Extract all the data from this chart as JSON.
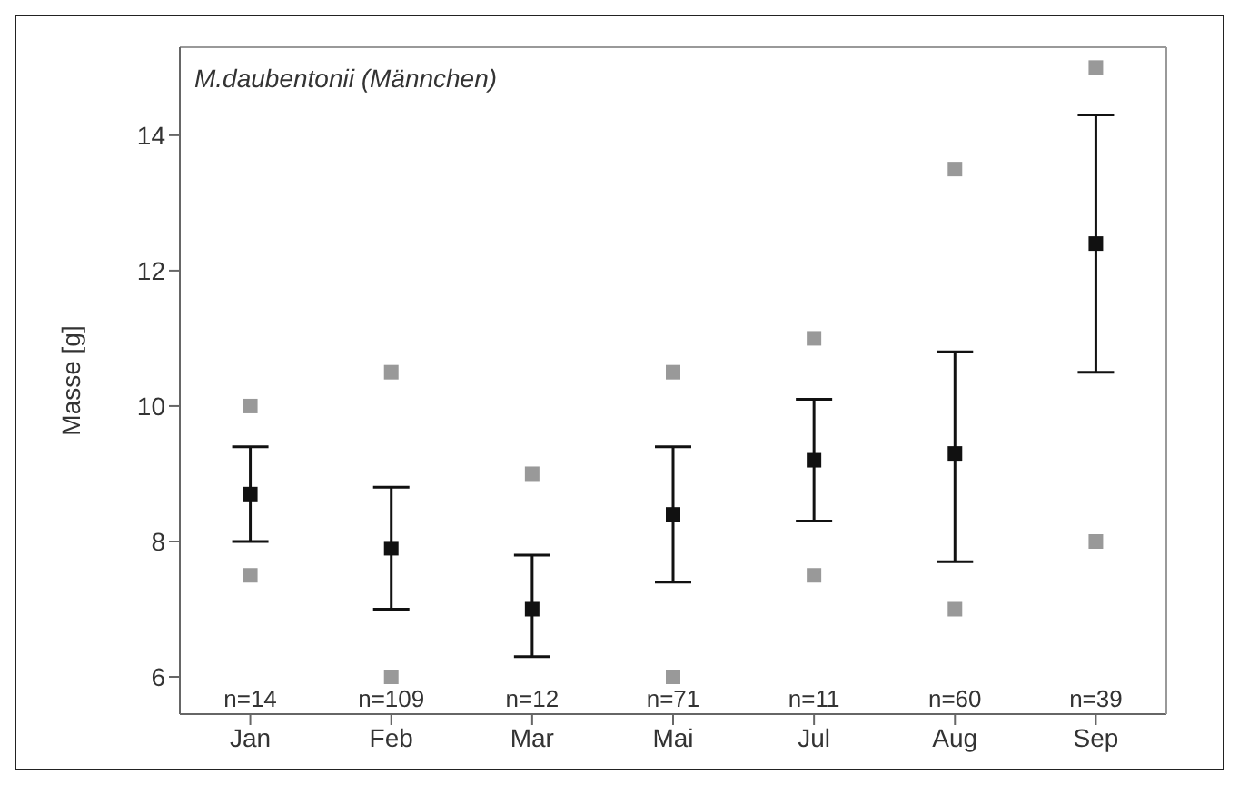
{
  "chart_data": {
    "type": "scatter",
    "title": "M.daubentonii (Männchen)",
    "ylabel": "Masse [g]",
    "categories": [
      "Jan",
      "Feb",
      "Mar",
      "Mai",
      "Jul",
      "Aug",
      "Sep"
    ],
    "series": [
      {
        "color": "#999999",
        "values": [
          10.0,
          10.5,
          9.0,
          10.5,
          11.0,
          13.5,
          15.0
        ]
      },
      {
        "color": "#999999",
        "values": [
          7.5,
          6.0,
          null,
          6.0,
          7.5,
          7.0,
          8.0
        ]
      },
      {
        "color": "#111111",
        "values": [
          8.7,
          7.9,
          7.0,
          8.4,
          9.2,
          9.3,
          12.4
        ],
        "errors": [
          [
            8.0,
            9.4
          ],
          [
            7.0,
            8.8
          ],
          [
            6.3,
            7.8
          ],
          [
            7.4,
            9.4
          ],
          [
            8.3,
            10.1
          ],
          [
            7.7,
            10.8
          ],
          [
            10.5,
            14.3
          ]
        ]
      }
    ],
    "ylim": [
      5.45,
      15.3
    ],
    "yticks": [
      6,
      8,
      10,
      12,
      14
    ],
    "marker": "square",
    "grid": false,
    "legend": false,
    "annotations": [
      "n=14",
      "n=109",
      "n=12",
      "n=71",
      "n=11",
      "n=60",
      "n=39"
    ]
  }
}
